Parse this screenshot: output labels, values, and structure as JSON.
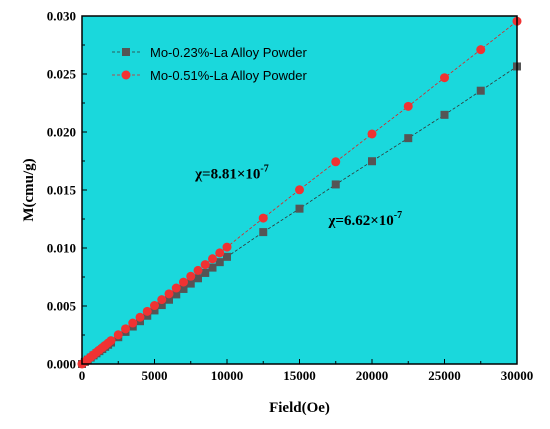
{
  "chart_data": {
    "type": "scatter",
    "xlabel": "Field(Oe)",
    "ylabel": "M(cmu/g)",
    "xlim": [
      0,
      30000
    ],
    "ylim": [
      0,
      0.03
    ],
    "xticks": [
      "0",
      "5000",
      "10000",
      "15000",
      "20000",
      "25000",
      "30000"
    ],
    "yticks": [
      "0.000",
      "0.005",
      "0.010",
      "0.015",
      "0.020",
      "0.025",
      "0.030"
    ],
    "legend_position": "top-left",
    "background_color": "#1ad8dc",
    "series": [
      {
        "name": "Mo-0.23%-La Alloy Powder",
        "marker": "square",
        "color": "#555555",
        "line_color": "#333333",
        "x": [
          0,
          200,
          400,
          600,
          800,
          1000,
          1200,
          1400,
          1600,
          1800,
          2000,
          2500,
          3000,
          3500,
          4000,
          4500,
          5000,
          5500,
          6000,
          6500,
          7000,
          7500,
          8000,
          8500,
          9000,
          9500,
          10000,
          12500,
          15000,
          17500,
          20000,
          22500,
          25000,
          27500,
          30000
        ],
        "y": [
          0,
          0.00018,
          0.00037,
          0.00055,
          0.00074,
          0.00092,
          0.00111,
          0.00129,
          0.00148,
          0.00166,
          0.00185,
          0.00231,
          0.00277,
          0.00323,
          0.00369,
          0.00416,
          0.00462,
          0.00508,
          0.00554,
          0.006,
          0.00647,
          0.00693,
          0.00739,
          0.00785,
          0.00831,
          0.00878,
          0.00924,
          0.01137,
          0.01339,
          0.01548,
          0.01748,
          0.01947,
          0.02148,
          0.02356,
          0.02565
        ]
      },
      {
        "name": "Mo-0.51%-La Alloy Powder",
        "marker": "circle",
        "color": "#f03232",
        "line_color": "#e02020",
        "x": [
          0,
          200,
          400,
          600,
          800,
          1000,
          1200,
          1400,
          1600,
          1800,
          2000,
          2500,
          3000,
          3500,
          4000,
          4500,
          5000,
          5500,
          6000,
          6500,
          7000,
          7500,
          8000,
          8500,
          9000,
          9500,
          10000,
          12500,
          15000,
          17500,
          20000,
          22500,
          25000,
          27500,
          30000
        ],
        "y": [
          0,
          0.0002,
          0.0004,
          0.0006,
          0.0008,
          0.00101,
          0.00121,
          0.00141,
          0.00161,
          0.00181,
          0.00202,
          0.00252,
          0.00303,
          0.00353,
          0.00403,
          0.00454,
          0.00504,
          0.00555,
          0.00605,
          0.00655,
          0.00706,
          0.00756,
          0.00807,
          0.00857,
          0.00907,
          0.00958,
          0.01008,
          0.01258,
          0.01502,
          0.01743,
          0.01983,
          0.02221,
          0.02468,
          0.0271,
          0.02955
        ]
      }
    ],
    "annotations": [
      {
        "base": "χ=8.81×10",
        "exponent": "-7",
        "at": [
          7800,
          0.016
        ]
      },
      {
        "base": "χ=6.62×10",
        "exponent": "-7",
        "at": [
          17000,
          0.012
        ]
      }
    ]
  }
}
